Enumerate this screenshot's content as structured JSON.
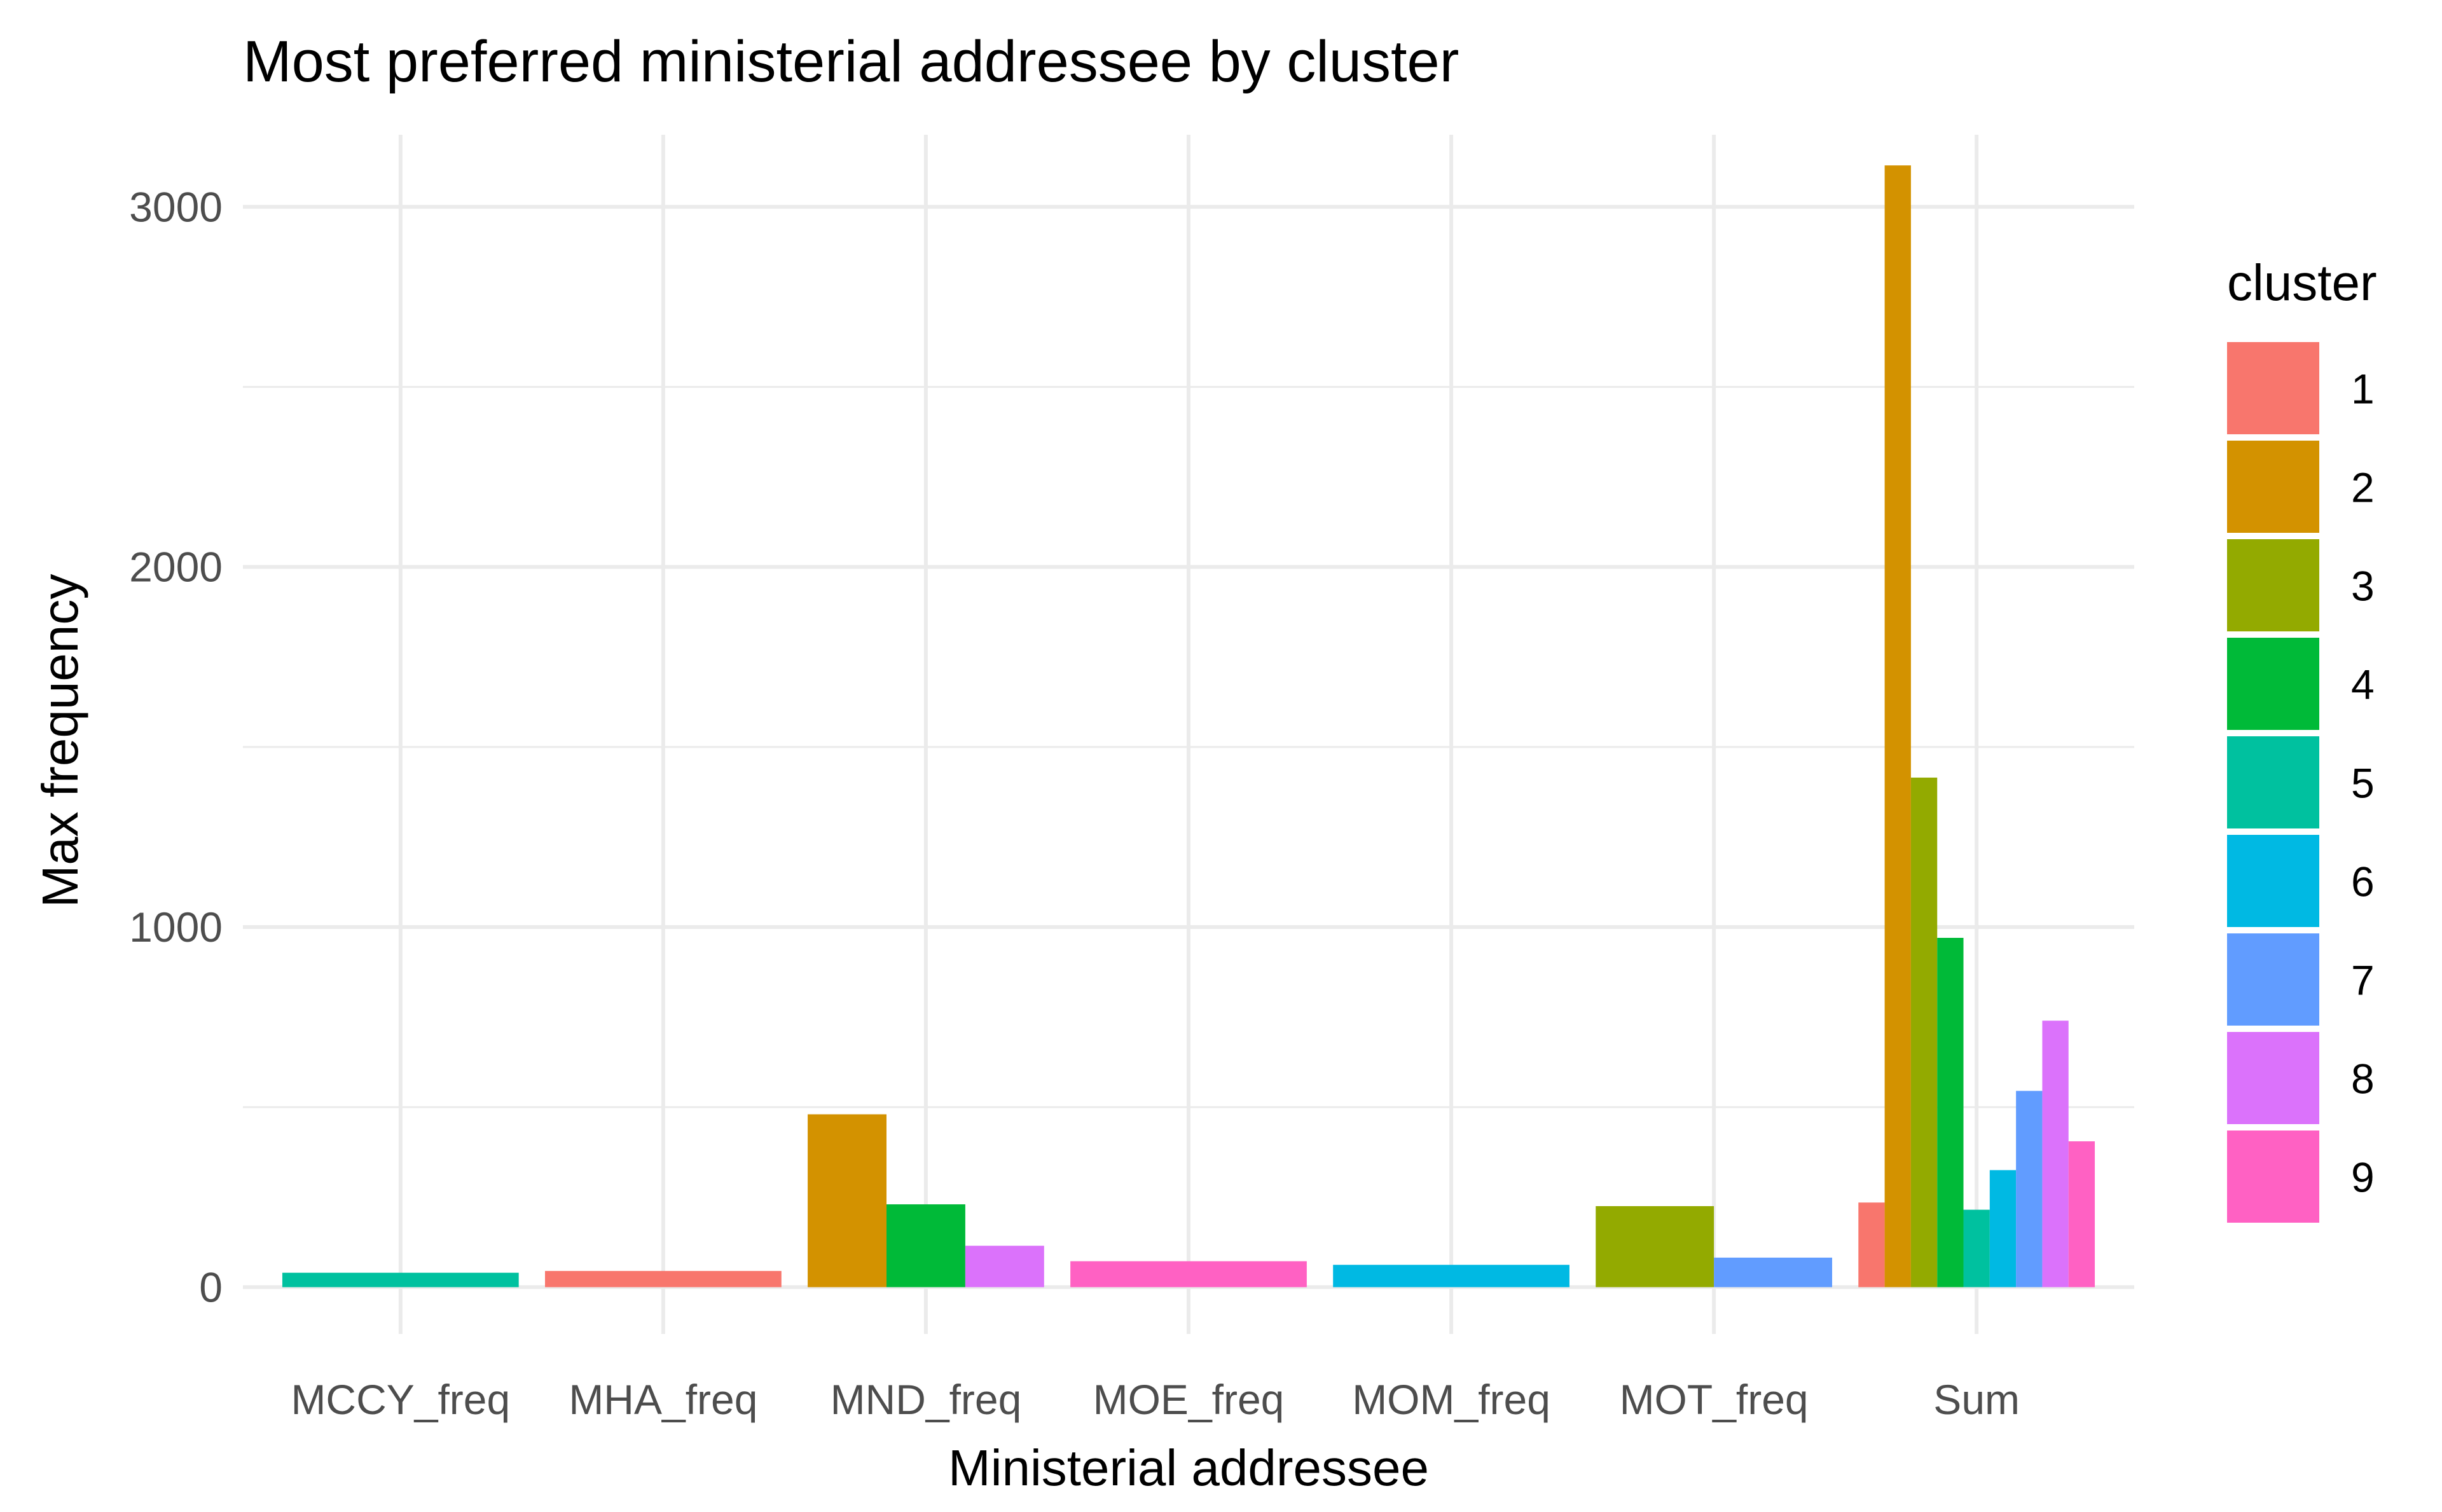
{
  "chart_data": {
    "type": "bar",
    "title": "Most preferred ministerial addressee by cluster",
    "xlabel": "Ministerial addressee",
    "ylabel": "Max frequency",
    "ylim": [
      -130,
      3200
    ],
    "yticks": [
      0,
      1000,
      2000,
      3000
    ],
    "grid": true,
    "legend_title": "cluster",
    "legend_position": "right",
    "categories": [
      "MCCY_freq",
      "MHA_freq",
      "MND_freq",
      "MOE_freq",
      "MOM_freq",
      "MOT_freq",
      "Sum"
    ],
    "series": [
      {
        "name": "1",
        "color": "#F8766D",
        "values": [
          null,
          45,
          null,
          null,
          null,
          null,
          235
        ]
      },
      {
        "name": "2",
        "color": "#D39200",
        "values": [
          null,
          null,
          480,
          null,
          null,
          null,
          3115
        ]
      },
      {
        "name": "3",
        "color": "#93AA00",
        "values": [
          null,
          null,
          null,
          null,
          null,
          225,
          1415
        ]
      },
      {
        "name": "4",
        "color": "#00BA38",
        "values": [
          null,
          null,
          230,
          null,
          null,
          null,
          970
        ]
      },
      {
        "name": "5",
        "color": "#00C19F",
        "values": [
          40,
          null,
          null,
          null,
          null,
          null,
          215
        ]
      },
      {
        "name": "6",
        "color": "#00B9E3",
        "values": [
          null,
          null,
          null,
          null,
          62,
          null,
          325
        ]
      },
      {
        "name": "7",
        "color": "#619CFF",
        "values": [
          null,
          null,
          null,
          null,
          null,
          82,
          545
        ]
      },
      {
        "name": "8",
        "color": "#DB72FB",
        "values": [
          null,
          null,
          115,
          null,
          null,
          null,
          740
        ]
      },
      {
        "name": "9",
        "color": "#FF61C3",
        "values": [
          null,
          null,
          null,
          72,
          null,
          null,
          405
        ]
      }
    ]
  }
}
